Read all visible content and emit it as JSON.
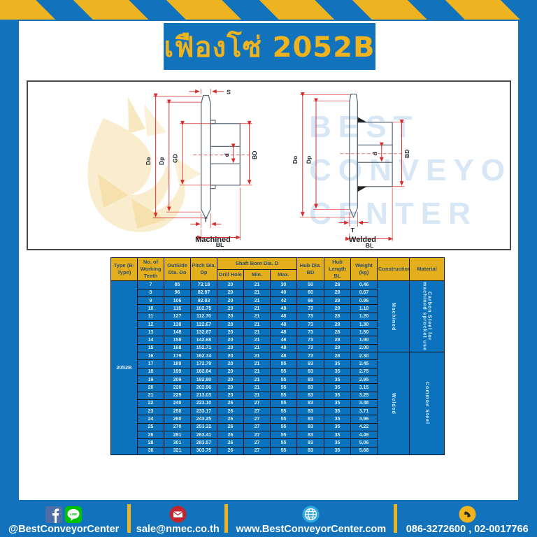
{
  "title": "เฟืองโซ่ 2052B",
  "diagram": {
    "machined_label": "Machined",
    "welded_label": "Welded",
    "watermark": {
      "line1": "BEST",
      "line2": "CONVEYOR",
      "line3": "CENTER"
    },
    "dims_machined": {
      "S": "S",
      "Do": "Do",
      "Dp": "Dp",
      "GD": "GD",
      "d": "d",
      "BD": "BD",
      "T": "T",
      "BL": "BL"
    },
    "dims_welded": {
      "Do": "Do",
      "Dp": "Dp",
      "d": "d",
      "BD": "BD",
      "T": "T",
      "BL": "BL"
    }
  },
  "table": {
    "headers": {
      "type": "Type (B-Type)",
      "teeth": "No. of Working Teeth",
      "outside": "OutSide Dia. Do",
      "pitch": "Pitch Dia. Dp",
      "shaft_bore": "Shaft Bore Dia. D",
      "drill": "Drill Hole",
      "min": "Min.",
      "max": "Max.",
      "hub_dia": "Hub Dia. BD",
      "hub_len": "Hub Length BL",
      "weight": "Weight (kg)",
      "construction": "Construction",
      "material": "Material"
    },
    "type_value": "2052B",
    "groups": [
      {
        "construction": "Machined",
        "material": "Carbon Steel for machined sprocket use",
        "span": 9
      },
      {
        "construction": "Welded",
        "material": "Common Steel",
        "span": 13
      }
    ],
    "rows": [
      [
        "7",
        "85",
        "73.18",
        "20",
        "21",
        "30",
        "50",
        "28",
        "0.46"
      ],
      [
        "8",
        "96",
        "82.97",
        "20",
        "21",
        "40",
        "60",
        "28",
        "0.67"
      ],
      [
        "9",
        "106",
        "92.83",
        "20",
        "21",
        "42",
        "66",
        "28",
        "0.96"
      ],
      [
        "10",
        "116",
        "102.75",
        "20",
        "21",
        "48",
        "73",
        "28",
        "1.10"
      ],
      [
        "11",
        "127",
        "112.70",
        "20",
        "21",
        "48",
        "73",
        "28",
        "1.20"
      ],
      [
        "12",
        "138",
        "122.67",
        "20",
        "21",
        "48",
        "73",
        "28",
        "1.30"
      ],
      [
        "13",
        "148",
        "132.67",
        "20",
        "21",
        "48",
        "73",
        "28",
        "1.50"
      ],
      [
        "14",
        "158",
        "142.68",
        "20",
        "21",
        "48",
        "73",
        "28",
        "1.90"
      ],
      [
        "15",
        "168",
        "152.71",
        "20",
        "21",
        "48",
        "73",
        "28",
        "2.00"
      ],
      [
        "16",
        "179",
        "162.74",
        "20",
        "21",
        "48",
        "73",
        "28",
        "2.30"
      ],
      [
        "17",
        "189",
        "172.79",
        "20",
        "21",
        "55",
        "83",
        "35",
        "2.45"
      ],
      [
        "18",
        "199",
        "182.84",
        "20",
        "21",
        "55",
        "83",
        "35",
        "2.75"
      ],
      [
        "19",
        "209",
        "192.90",
        "20",
        "21",
        "55",
        "83",
        "35",
        "2.95"
      ],
      [
        "20",
        "220",
        "202.96",
        "20",
        "21",
        "55",
        "83",
        "35",
        "3.15"
      ],
      [
        "21",
        "229",
        "213.03",
        "20",
        "21",
        "55",
        "83",
        "35",
        "3.25"
      ],
      [
        "22",
        "240",
        "223.10",
        "26",
        "27",
        "55",
        "83",
        "35",
        "3.48"
      ],
      [
        "23",
        "250",
        "233.17",
        "26",
        "27",
        "55",
        "83",
        "35",
        "3.71"
      ],
      [
        "24",
        "260",
        "243.25",
        "26",
        "27",
        "55",
        "83",
        "35",
        "3.96"
      ],
      [
        "25",
        "270",
        "253.32",
        "26",
        "27",
        "55",
        "83",
        "35",
        "4.22"
      ],
      [
        "26",
        "281",
        "263.41",
        "26",
        "27",
        "55",
        "83",
        "35",
        "4.49"
      ],
      [
        "28",
        "301",
        "283.57",
        "26",
        "27",
        "55",
        "83",
        "35",
        "5.06"
      ],
      [
        "30",
        "321",
        "303.75",
        "26",
        "27",
        "55",
        "83",
        "35",
        "5.68"
      ]
    ]
  },
  "footer": {
    "social_label": "@BestConveyorCenter",
    "line_badge": "LINE",
    "email_label": "sale@nmec.co.th",
    "web_label": "www.BestConveyorCenter.com",
    "phone_label": "086-3272600 , 02-0017766"
  },
  "colors": {
    "brand_blue": "#1273BC",
    "brand_yellow": "#EDB321",
    "table_header_bg": "#E3AF1D",
    "table_body_bg": "#0B73BE",
    "dim_red": "#D92B2B",
    "facebook_blue": "#4E6FA5",
    "line_green": "#00C300",
    "mail_red": "#C0262C",
    "globe_blue": "#2FA8DF",
    "phone_yellow": "#F1B41C"
  }
}
